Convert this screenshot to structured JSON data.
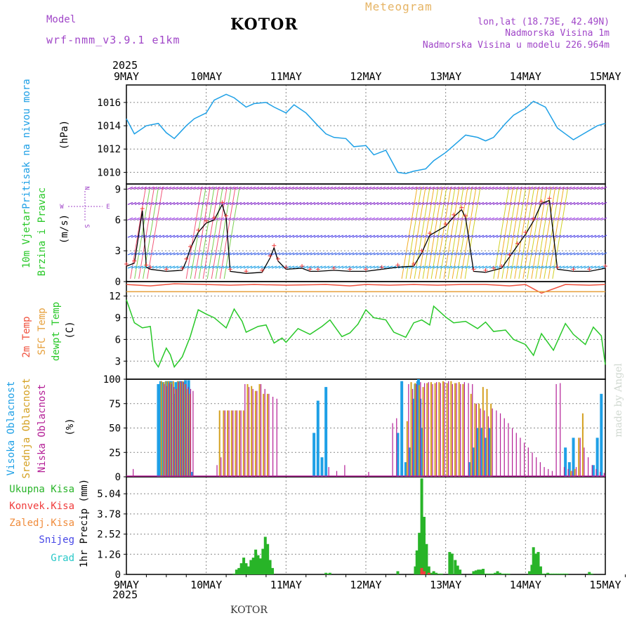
{
  "header": {
    "model_label": "Model",
    "model_name": "wrf-nmm_v3.9.1  e1km",
    "location": "KOTOR",
    "product": "Meteogram",
    "lonlat": "lon,lat (18.73E, 42.49N)",
    "elevation": "Nadmorska Visina 1m",
    "model_elevation": "Nadmorska Visina u modelu 226.964m",
    "year_top": "2025",
    "year_bottom": "2025",
    "footer_location": "KOTOR",
    "watermark": "made by Angel"
  },
  "colors": {
    "pressure": "#1ea0e6",
    "temp2m": "#f0503c",
    "sfc": "#e6a03c",
    "dewpt": "#28c828",
    "high_cloud": "#1ea0e6",
    "mid_cloud": "#d4a020",
    "low_cloud": "#b41e96",
    "total_precip": "#28b428",
    "conv_precip": "#f03c3c",
    "frz_precip": "#f08c3c",
    "snow": "#4646e6",
    "hail": "#28c8c8",
    "legend_purple": "#a046c8",
    "title_orange": "#e6b464"
  },
  "chart_data": [
    {
      "type": "line",
      "panel": "pressure",
      "ylabel": "Pritisak na nivou mora",
      "units": "(hPa)",
      "ylim": [
        1009,
        1017.5
      ],
      "yticks": [
        "1010",
        "1012",
        "1014",
        "1016"
      ],
      "xticks": [
        "9MAY",
        "10MAY",
        "11MAY",
        "12MAY",
        "13MAY",
        "14MAY",
        "15MAY"
      ],
      "grid": true,
      "series": [
        {
          "x": [
            0,
            0.1,
            0.25,
            0.4,
            0.5,
            0.6,
            0.75,
            0.85,
            1.0,
            1.1,
            1.25,
            1.35,
            1.5,
            1.6,
            1.75,
            1.85,
            2.0,
            2.1,
            2.25,
            2.4,
            2.5,
            2.6,
            2.75,
            2.85,
            3.0,
            3.1,
            3.25,
            3.4,
            3.5,
            3.6,
            3.75,
            3.85,
            4.0,
            4.1,
            4.25,
            4.4,
            4.5,
            4.6,
            4.75,
            4.85,
            5.0,
            5.1,
            5.25,
            5.4,
            5.5,
            5.6,
            5.75,
            5.9,
            6.0
          ],
          "values": [
            1014.6,
            1013.3,
            1014.0,
            1014.2,
            1013.4,
            1012.9,
            1014.0,
            1014.6,
            1015.1,
            1016.2,
            1016.7,
            1016.4,
            1015.6,
            1015.9,
            1016.0,
            1015.6,
            1015.1,
            1015.8,
            1015.1,
            1014.0,
            1013.3,
            1013.0,
            1012.9,
            1012.2,
            1012.3,
            1011.5,
            1011.9,
            1010.0,
            1009.9,
            1010.1,
            1010.3,
            1011.0,
            1011.7,
            1012.3,
            1013.2,
            1013.0,
            1012.7,
            1013.0,
            1014.2,
            1014.9,
            1015.5,
            1016.1,
            1015.6,
            1013.8,
            1013.3,
            1012.8,
            1013.4,
            1014.0,
            1014.2
          ]
        }
      ]
    },
    {
      "type": "line",
      "panel": "wind",
      "ylabel": [
        "10m Vjetar",
        "Brzina i Pravac"
      ],
      "units": "(m/s)",
      "direction_legend": [
        "N",
        "W",
        "E",
        "S"
      ],
      "ylim": [
        0,
        9.5
      ],
      "yticks": [
        "0",
        "3",
        "6",
        "9"
      ],
      "grid": true,
      "series": [
        {
          "name": "",
          "x": [
            0,
            0.1,
            0.2,
            0.25,
            0.3,
            0.5,
            0.7,
            0.75,
            0.8,
            0.9,
            1.0,
            1.1,
            1.2,
            1.25,
            1.3,
            1.5,
            1.7,
            1.8,
            1.85,
            1.9,
            2.0,
            2.2,
            2.3,
            2.4,
            2.6,
            2.8,
            3.0,
            3.2,
            3.4,
            3.6,
            3.7,
            3.8,
            4.0,
            4.1,
            4.2,
            4.25,
            4.35,
            4.5,
            4.6,
            4.7,
            4.8,
            4.9,
            5.0,
            5.1,
            5.2,
            5.3,
            5.4,
            5.6,
            5.8,
            6.0
          ],
          "values": [
            1.5,
            1.8,
            6.9,
            1.4,
            1.2,
            1.0,
            1.1,
            2.0,
            3.2,
            4.8,
            5.7,
            6.0,
            7.5,
            6.2,
            1.0,
            0.8,
            0.9,
            2.3,
            3.3,
            2.0,
            1.2,
            1.3,
            1.0,
            1.0,
            1.1,
            1.0,
            1.0,
            1.2,
            1.4,
            1.5,
            2.8,
            4.5,
            5.4,
            6.3,
            7.0,
            6.2,
            1.0,
            0.9,
            1.1,
            1.3,
            2.4,
            3.5,
            4.6,
            5.9,
            7.6,
            7.9,
            1.2,
            1.0,
            1.0,
            1.3
          ]
        }
      ]
    },
    {
      "type": "line",
      "panel": "temperature",
      "ylabel": [
        "2m Temp",
        "SFC Temp",
        "dewpt Temp"
      ],
      "units": "(C)",
      "ylim": [
        0.5,
        14
      ],
      "yticks": [
        "3",
        "6",
        "9",
        "12"
      ],
      "grid": true,
      "series": [
        {
          "name": "dewpt Temp",
          "x": [
            0,
            0.1,
            0.2,
            0.3,
            0.35,
            0.4,
            0.5,
            0.55,
            0.6,
            0.7,
            0.8,
            0.9,
            1.0,
            1.1,
            1.25,
            1.35,
            1.45,
            1.5,
            1.65,
            1.75,
            1.85,
            1.95,
            2.0,
            2.15,
            2.3,
            2.45,
            2.55,
            2.7,
            2.8,
            2.9,
            3.0,
            3.1,
            3.25,
            3.35,
            3.5,
            3.6,
            3.7,
            3.8,
            3.85,
            4.0,
            4.1,
            4.25,
            4.4,
            4.5,
            4.6,
            4.75,
            4.85,
            5.0,
            5.1,
            5.2,
            5.35,
            5.5,
            5.6,
            5.75,
            5.85,
            5.95,
            6.0
          ],
          "values": [
            11.5,
            8.3,
            7.6,
            7.8,
            3.0,
            2.2,
            4.8,
            3.9,
            2.2,
            3.6,
            6.4,
            10.1,
            9.5,
            9.0,
            7.6,
            10.2,
            8.5,
            7.0,
            7.8,
            8.0,
            5.5,
            6.2,
            5.6,
            7.5,
            6.7,
            7.8,
            8.7,
            6.4,
            6.9,
            8.1,
            10.1,
            9.0,
            8.7,
            7.0,
            6.3,
            8.3,
            8.7,
            8.0,
            10.6,
            9.1,
            8.3,
            8.5,
            7.5,
            8.4,
            7.1,
            7.3,
            6.0,
            5.3,
            3.8,
            6.8,
            4.5,
            8.2,
            6.7,
            5.3,
            7.7,
            6.5,
            2.5
          ]
        },
        {
          "name": "2m Temp",
          "x": [
            0,
            0.3,
            0.6,
            1.0,
            1.3,
            1.6,
            2.0,
            2.5,
            2.8,
            3.0,
            3.3,
            3.6,
            3.9,
            4.2,
            4.5,
            4.8,
            5.0,
            5.2,
            5.5,
            5.8,
            6.0
          ],
          "values": [
            13.6,
            13.4,
            13.7,
            13.6,
            13.5,
            13.6,
            13.5,
            13.6,
            13.4,
            13.6,
            13.5,
            13.6,
            13.5,
            13.6,
            13.6,
            13.4,
            13.6,
            12.4,
            13.6,
            13.5,
            13.6
          ]
        },
        {
          "name": "SFC Temp",
          "x": [
            0,
            6.0
          ],
          "values": [
            12.6,
            12.6
          ]
        }
      ]
    },
    {
      "type": "bar",
      "panel": "clouds",
      "ylabel": [
        "Visoka Oblacnost",
        "Srednja Oblacnost",
        "Niska Oblacnost"
      ],
      "units": "(%)",
      "ylim": [
        0,
        100
      ],
      "yticks": [
        "0",
        "25",
        "50",
        "75",
        "100"
      ],
      "grid": true,
      "series": [
        {
          "name": "Visoka Oblacnost",
          "x": [
            0.4,
            0.43,
            0.46,
            0.5,
            0.53,
            0.56,
            0.6,
            0.62,
            0.65,
            0.68,
            0.71,
            0.74,
            0.78,
            0.82,
            2.35,
            2.4,
            2.45,
            2.5,
            3.4,
            3.45,
            3.5,
            3.55,
            3.6,
            3.62,
            3.65,
            3.66,
            3.68,
            3.7,
            4.3,
            4.35,
            4.4,
            4.45,
            4.5,
            4.55,
            5.5,
            5.55,
            5.6,
            5.85,
            5.9,
            5.95
          ],
          "values": [
            95,
            98,
            97,
            98,
            98,
            98,
            85,
            97,
            98,
            98,
            97,
            99,
            99,
            5,
            45,
            78,
            20,
            92,
            45,
            98,
            15,
            30,
            80,
            95,
            98,
            100,
            80,
            50,
            15,
            30,
            50,
            50,
            40,
            50,
            30,
            15,
            40,
            12,
            40,
            85
          ]
        },
        {
          "name": "Srednja Oblacnost",
          "x": [
            0.42,
            0.45,
            0.48,
            0.51,
            0.54,
            0.57,
            0.6,
            0.63,
            0.66,
            0.69,
            0.72,
            0.75,
            0.78,
            1.15,
            1.2,
            1.25,
            1.3,
            1.35,
            1.4,
            1.45,
            1.5,
            1.55,
            1.6,
            1.65,
            1.7,
            1.75,
            3.5,
            3.55,
            3.6,
            3.65,
            3.7,
            3.75,
            3.8,
            3.85,
            3.9,
            3.95,
            4.0,
            4.05,
            4.1,
            4.15,
            4.2,
            4.3,
            4.35,
            4.4,
            4.45,
            4.5,
            4.55,
            5.55,
            5.6,
            5.65,
            5.7
          ],
          "values": [
            98,
            97,
            98,
            98,
            97,
            98,
            90,
            98,
            97,
            98,
            95,
            90,
            85,
            68,
            68,
            68,
            68,
            68,
            68,
            68,
            95,
            93,
            88,
            95,
            85,
            85,
            57,
            97,
            96,
            94,
            92,
            96,
            97,
            96,
            97,
            98,
            96,
            98,
            96,
            97,
            95,
            85,
            75,
            75,
            92,
            90,
            75,
            6,
            8,
            40,
            65
          ]
        },
        {
          "name": "Niska Oblacnost",
          "x": [
            0.05,
            0.44,
            0.47,
            0.5,
            0.53,
            0.56,
            0.59,
            0.62,
            0.65,
            0.68,
            0.71,
            0.74,
            0.77,
            0.8,
            1.1,
            1.15,
            1.2,
            1.25,
            1.3,
            1.35,
            1.4,
            1.45,
            1.5,
            1.55,
            1.6,
            1.65,
            1.7,
            1.75,
            1.8,
            1.85,
            2.5,
            2.6,
            2.7,
            3.0,
            3.3,
            3.35,
            3.5,
            3.55,
            3.6,
            3.65,
            3.7,
            3.75,
            3.8,
            3.85,
            3.9,
            3.95,
            4.0,
            4.05,
            4.1,
            4.15,
            4.2,
            4.25,
            4.3,
            4.35,
            4.4,
            4.45,
            4.5,
            4.55,
            4.6,
            4.65,
            4.7,
            4.75,
            4.8,
            4.85,
            4.9,
            4.95,
            5.0,
            5.05,
            5.1,
            5.15,
            5.2,
            5.25,
            5.3,
            5.35,
            5.4,
            5.45,
            5.5,
            5.55,
            5.6,
            5.65,
            5.7,
            5.75,
            5.8,
            5.85,
            5.9,
            5.95
          ],
          "values": [
            8,
            95,
            93,
            96,
            95,
            92,
            90,
            97,
            98,
            97,
            95,
            92,
            90,
            88,
            12,
            20,
            68,
            68,
            68,
            68,
            68,
            95,
            92,
            90,
            88,
            95,
            90,
            85,
            82,
            80,
            10,
            6,
            12,
            5,
            55,
            60,
            95,
            90,
            95,
            97,
            96,
            97,
            95,
            97,
            96,
            97,
            98,
            95,
            96,
            95,
            97,
            96,
            95,
            75,
            70,
            68,
            62,
            70,
            68,
            65,
            60,
            55,
            50,
            45,
            40,
            35,
            30,
            25,
            20,
            15,
            10,
            8,
            6,
            95,
            96,
            10,
            8,
            6,
            10,
            40,
            30,
            20,
            12,
            8,
            5,
            4
          ]
        }
      ]
    },
    {
      "type": "bar",
      "panel": "precip",
      "ylabel": [
        "1hr Precip (mm)"
      ],
      "legend": [
        "Ukupna Kisa",
        "Konvek.Kisa",
        "Zaledj.Kisa",
        "Snijeg",
        "Grad"
      ],
      "ylim": [
        0,
        6.1
      ],
      "yticks": [
        "0",
        "1.26",
        "2.52",
        "3.78",
        "5.04"
      ],
      "xticks": [
        "9MAY",
        "10MAY",
        "11MAY",
        "12MAY",
        "13MAY",
        "14MAY",
        "15MAY"
      ],
      "grid": true,
      "series": [
        {
          "name": "Ukupna Kisa",
          "x": [
            1.35,
            1.38,
            1.41,
            1.44,
            1.47,
            1.5,
            1.53,
            1.56,
            1.59,
            1.62,
            1.65,
            1.68,
            1.71,
            1.74,
            1.77,
            1.8,
            1.83,
            2.5,
            2.52,
            2.55,
            3.4,
            3.62,
            3.64,
            3.67,
            3.7,
            3.73,
            3.76,
            3.79,
            3.82,
            3.85,
            3.88,
            3.92,
            3.95,
            4.05,
            4.08,
            4.12,
            4.15,
            4.18,
            4.35,
            4.38,
            4.41,
            4.44,
            4.47,
            4.5,
            4.53,
            4.56,
            4.59,
            4.62,
            4.65,
            4.68,
            4.7,
            4.73,
            4.76,
            4.79,
            5.05,
            5.08,
            5.1,
            5.13,
            5.16,
            5.19,
            5.22,
            5.25,
            5.28,
            5.31,
            5.34,
            5.37,
            5.4,
            5.43,
            5.46,
            5.49,
            5.52,
            5.8,
            5.83
          ],
          "values": [
            0.05,
            0.3,
            0.4,
            0.7,
            1.05,
            0.7,
            0.5,
            0.9,
            1.05,
            1.55,
            1.2,
            1.0,
            1.6,
            2.35,
            1.9,
            0.9,
            0.4,
            0.1,
            0.05,
            0.1,
            0.2,
            0.5,
            1.5,
            2.6,
            6.0,
            3.6,
            1.9,
            0.5,
            0.1,
            0.2,
            0.1,
            0.05,
            0.05,
            1.4,
            1.3,
            0.9,
            0.55,
            0.3,
            0.2,
            0.25,
            0.3,
            0.3,
            0.35,
            0.05,
            0.05,
            0.05,
            0.05,
            0.1,
            0.2,
            0.1,
            0.05,
            0.05,
            0.05,
            0.05,
            0.2,
            0.6,
            1.7,
            1.3,
            1.4,
            0.5,
            0.05,
            0.05,
            0.1,
            0.05,
            0.05,
            0.05,
            0.05,
            0.05,
            0.05,
            0.05,
            0.05,
            0.15,
            0.05
          ]
        },
        {
          "name": "Konvek.Kisa",
          "x": [
            3.7,
            3.73,
            3.79
          ],
          "values": [
            0.4,
            0.2,
            0.1
          ]
        }
      ]
    }
  ]
}
